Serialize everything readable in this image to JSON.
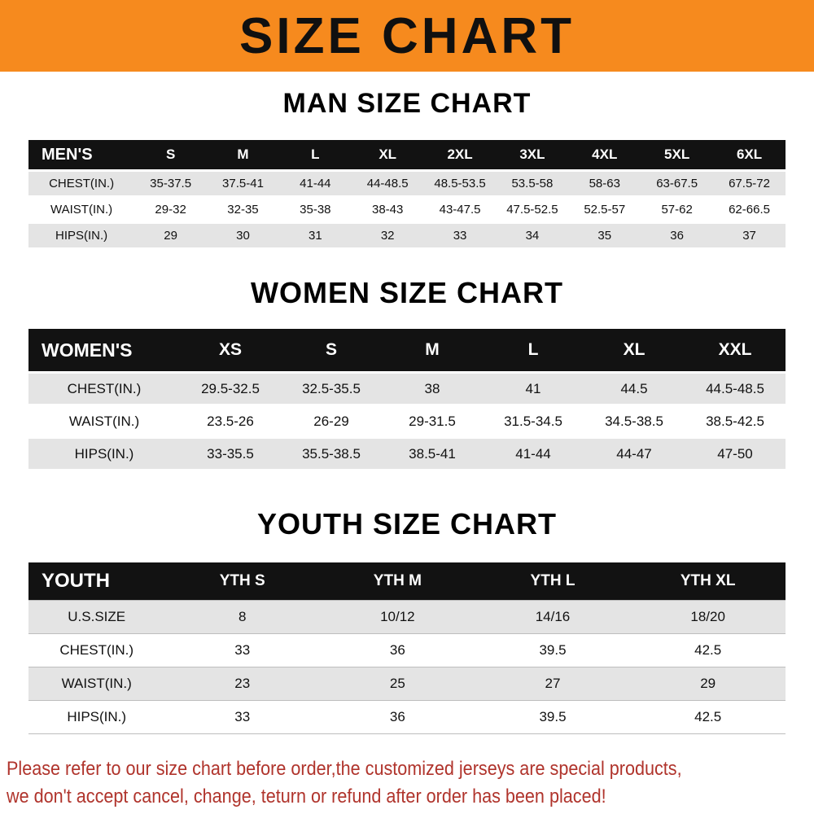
{
  "banner": {
    "title": "SIZE CHART"
  },
  "men": {
    "heading": "MAN SIZE CHART",
    "header": [
      "MEN'S",
      "S",
      "M",
      "L",
      "XL",
      "2XL",
      "3XL",
      "4XL",
      "5XL",
      "6XL"
    ],
    "rows": [
      [
        "CHEST(IN.)",
        "35-37.5",
        "37.5-41",
        "41-44",
        "44-48.5",
        "48.5-53.5",
        "53.5-58",
        "58-63",
        "63-67.5",
        "67.5-72"
      ],
      [
        "WAIST(IN.)",
        "29-32",
        "32-35",
        "35-38",
        "38-43",
        "43-47.5",
        "47.5-52.5",
        "52.5-57",
        "57-62",
        "62-66.5"
      ],
      [
        "HIPS(IN.)",
        "29",
        "30",
        "31",
        "32",
        "33",
        "34",
        "35",
        "36",
        "37"
      ]
    ]
  },
  "women": {
    "heading": "WOMEN SIZE CHART",
    "header": [
      "WOMEN'S",
      "XS",
      "S",
      "M",
      "L",
      "XL",
      "XXL"
    ],
    "rows": [
      [
        "CHEST(IN.)",
        "29.5-32.5",
        "32.5-35.5",
        "38",
        "41",
        "44.5",
        "44.5-48.5"
      ],
      [
        "WAIST(IN.)",
        "23.5-26",
        "26-29",
        "29-31.5",
        "31.5-34.5",
        "34.5-38.5",
        "38.5-42.5"
      ],
      [
        "HIPS(IN.)",
        "33-35.5",
        "35.5-38.5",
        "38.5-41",
        "41-44",
        "44-47",
        "47-50"
      ]
    ]
  },
  "youth": {
    "heading": "YOUTH SIZE CHART",
    "header": [
      "YOUTH",
      "YTH S",
      "YTH M",
      "YTH L",
      "YTH XL"
    ],
    "rows": [
      [
        "U.S.SIZE",
        "8",
        "10/12",
        "14/16",
        "18/20"
      ],
      [
        "CHEST(IN.)",
        "33",
        "36",
        "39.5",
        "42.5"
      ],
      [
        "WAIST(IN.)",
        "23",
        "25",
        "27",
        "29"
      ],
      [
        "HIPS(IN.)",
        "33",
        "36",
        "39.5",
        "42.5"
      ]
    ]
  },
  "footer": {
    "line1": "Please refer to our size chart before order,the customized jerseys are special products,",
    "line2": "we don't accept cancel, change, teturn or refund after order has been placed!"
  },
  "colors": {
    "banner_orange": "#F68A1E",
    "header_black": "#121212",
    "stripe_gray": "#E4E4E4",
    "footer_red": "#B0342C"
  }
}
